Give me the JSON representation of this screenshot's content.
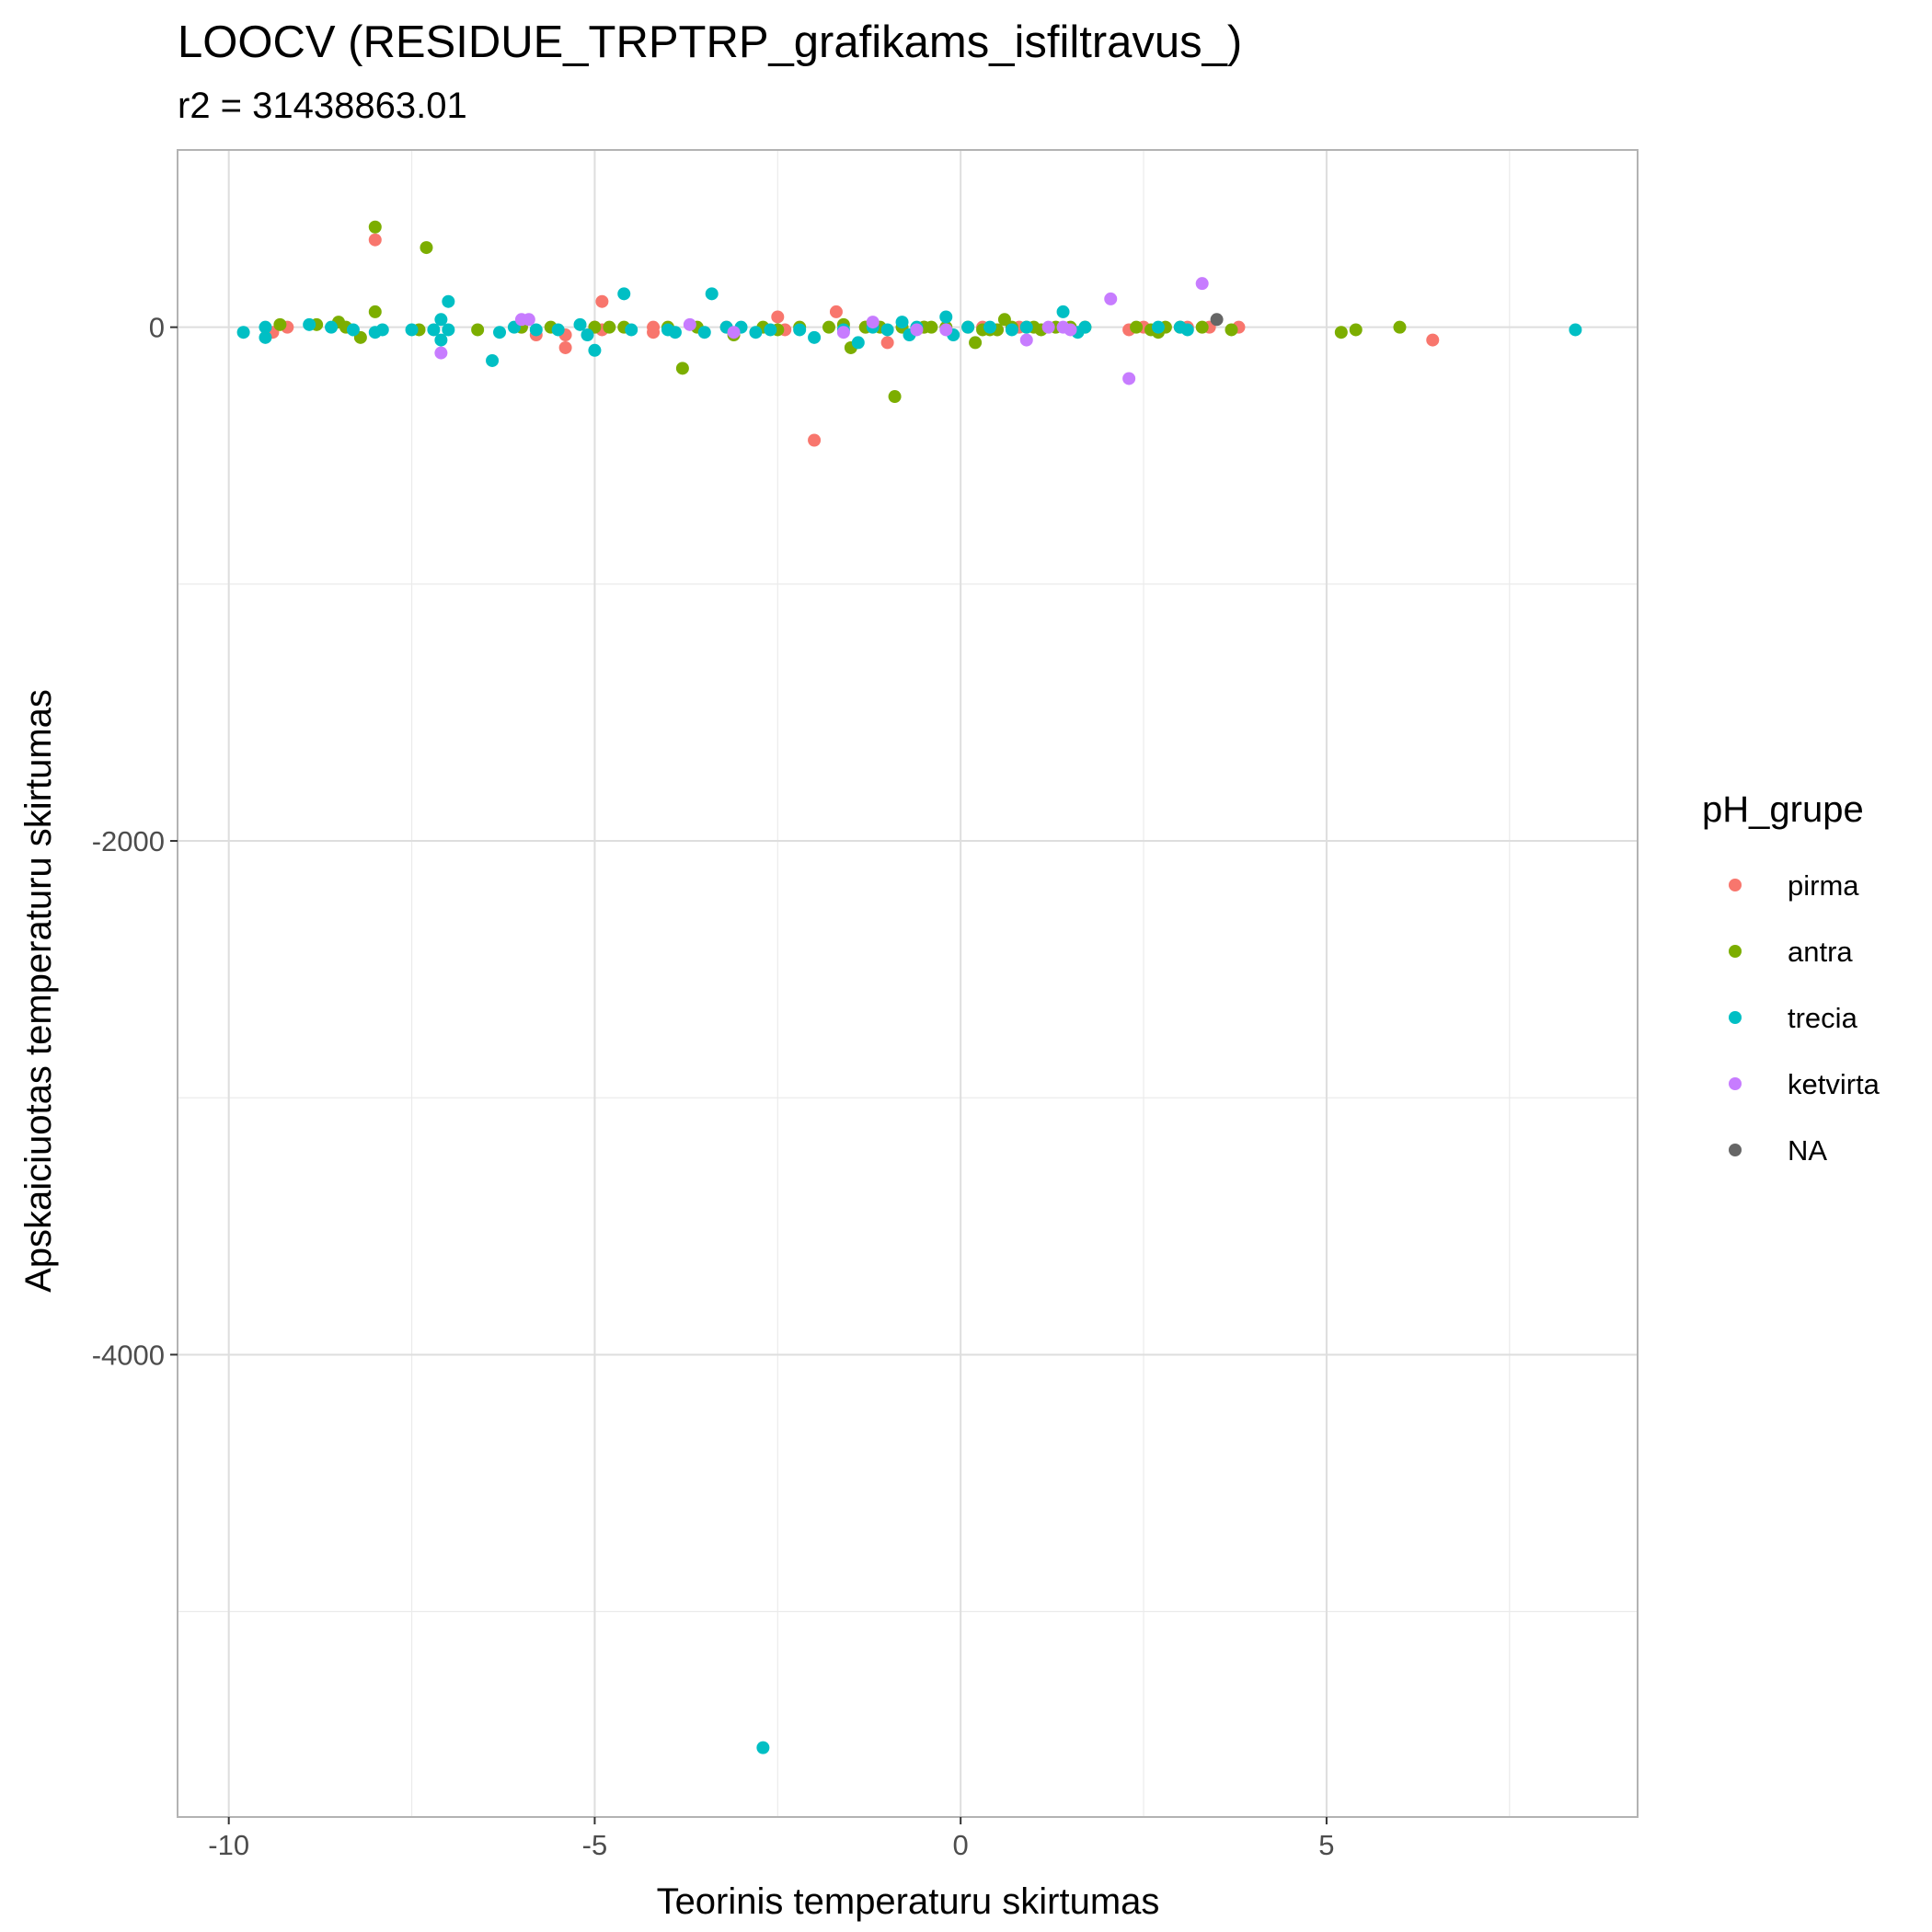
{
  "chart_data": {
    "type": "scatter",
    "title": "LOOCV (RESIDUE_TRPTRP_grafikams_isfiltravus_)",
    "subtitle": "r2 = 31438863.01",
    "xlabel": "Teorinis temperaturu skirtumas",
    "ylabel": "Apskaiciuotas temperaturu skirtumas",
    "xlim": [
      -10.7,
      9.25
    ],
    "ylim": [
      -5800,
      690
    ],
    "x_ticks": [
      -10,
      -5,
      0,
      5
    ],
    "x_tick_labels": [
      "-10",
      "-5",
      "0",
      "5"
    ],
    "y_ticks": [
      -4000,
      -2000,
      0
    ],
    "y_tick_labels": [
      "-4000",
      "-2000",
      "0"
    ],
    "x_minor_ticks": [
      -7.5,
      -2.5,
      2.5,
      7.5
    ],
    "y_minor_ticks": [
      -5000,
      -3000,
      -1000
    ],
    "grid": true,
    "legend": {
      "title": "pH_grupe",
      "position": "right"
    },
    "series": [
      {
        "name": "pirma",
        "color": "#F8766D",
        "points": [
          [
            -9.4,
            -20
          ],
          [
            -9.2,
            0
          ],
          [
            -8.0,
            340
          ],
          [
            -6.0,
            0
          ],
          [
            -5.8,
            -30
          ],
          [
            -5.4,
            -30
          ],
          [
            -5.4,
            -80
          ],
          [
            -5.0,
            0
          ],
          [
            -4.9,
            100
          ],
          [
            -4.9,
            -10
          ],
          [
            -4.2,
            0
          ],
          [
            -4.2,
            -20
          ],
          [
            -3.2,
            0
          ],
          [
            -2.5,
            40
          ],
          [
            -2.4,
            -10
          ],
          [
            -2.0,
            -440
          ],
          [
            -1.7,
            60
          ],
          [
            -1.3,
            0
          ],
          [
            -1.0,
            -60
          ],
          [
            -0.5,
            0
          ],
          [
            0.3,
            0
          ],
          [
            0.5,
            -10
          ],
          [
            0.8,
            0
          ],
          [
            2.3,
            -10
          ],
          [
            2.5,
            0
          ],
          [
            3.1,
            0
          ],
          [
            3.4,
            0
          ],
          [
            3.8,
            0
          ],
          [
            6.45,
            -50
          ]
        ]
      },
      {
        "name": "antra",
        "color": "#7CAE00",
        "points": [
          [
            -9.3,
            10
          ],
          [
            -8.8,
            10
          ],
          [
            -8.5,
            20
          ],
          [
            -8.4,
            0
          ],
          [
            -8.2,
            -40
          ],
          [
            -8.0,
            390
          ],
          [
            -8.0,
            60
          ],
          [
            -7.3,
            310
          ],
          [
            -7.4,
            -10
          ],
          [
            -6.6,
            -10
          ],
          [
            -6.0,
            0
          ],
          [
            -5.6,
            0
          ],
          [
            -5.0,
            0
          ],
          [
            -4.8,
            0
          ],
          [
            -4.6,
            0
          ],
          [
            -4.0,
            0
          ],
          [
            -3.8,
            -160
          ],
          [
            -3.6,
            0
          ],
          [
            -3.1,
            -30
          ],
          [
            -2.7,
            0
          ],
          [
            -2.5,
            -10
          ],
          [
            -2.2,
            0
          ],
          [
            -1.8,
            0
          ],
          [
            -1.6,
            10
          ],
          [
            -1.5,
            -80
          ],
          [
            -1.3,
            0
          ],
          [
            -1.1,
            0
          ],
          [
            -0.9,
            -270
          ],
          [
            -0.8,
            0
          ],
          [
            -0.5,
            0
          ],
          [
            -0.4,
            0
          ],
          [
            -0.2,
            0
          ],
          [
            0.1,
            0
          ],
          [
            0.2,
            -60
          ],
          [
            0.3,
            -10
          ],
          [
            0.4,
            -10
          ],
          [
            0.5,
            -10
          ],
          [
            0.6,
            30
          ],
          [
            0.7,
            0
          ],
          [
            0.9,
            0
          ],
          [
            1.0,
            0
          ],
          [
            1.1,
            -10
          ],
          [
            1.3,
            0
          ],
          [
            1.5,
            0
          ],
          [
            1.7,
            0
          ],
          [
            2.4,
            0
          ],
          [
            2.6,
            -10
          ],
          [
            2.7,
            -20
          ],
          [
            2.8,
            0
          ],
          [
            3.0,
            0
          ],
          [
            3.3,
            0
          ],
          [
            3.7,
            -10
          ],
          [
            5.2,
            -20
          ],
          [
            5.4,
            -10
          ],
          [
            6.0,
            0
          ]
        ]
      },
      {
        "name": "trecia",
        "color": "#00BFC4",
        "points": [
          [
            -9.8,
            -20
          ],
          [
            -9.5,
            -40
          ],
          [
            -9.5,
            0
          ],
          [
            -8.9,
            10
          ],
          [
            -8.6,
            0
          ],
          [
            -8.3,
            -10
          ],
          [
            -8.0,
            -20
          ],
          [
            -7.9,
            -10
          ],
          [
            -7.5,
            -10
          ],
          [
            -7.2,
            -10
          ],
          [
            -7.1,
            30
          ],
          [
            -7.1,
            -50
          ],
          [
            -7.0,
            100
          ],
          [
            -7.0,
            -10
          ],
          [
            -6.4,
            -130
          ],
          [
            -6.3,
            -20
          ],
          [
            -6.1,
            0
          ],
          [
            -5.8,
            -10
          ],
          [
            -5.5,
            -10
          ],
          [
            -5.2,
            10
          ],
          [
            -5.1,
            -30
          ],
          [
            -5.0,
            -90
          ],
          [
            -4.6,
            130
          ],
          [
            -4.5,
            -10
          ],
          [
            -4.0,
            -10
          ],
          [
            -3.9,
            -20
          ],
          [
            -3.5,
            -20
          ],
          [
            -3.4,
            130
          ],
          [
            -3.2,
            0
          ],
          [
            -3.0,
            0
          ],
          [
            -2.8,
            -20
          ],
          [
            -2.6,
            -10
          ],
          [
            -2.2,
            -10
          ],
          [
            -2.0,
            -40
          ],
          [
            -1.6,
            -10
          ],
          [
            -1.4,
            -60
          ],
          [
            -1.2,
            0
          ],
          [
            -1.0,
            -10
          ],
          [
            -0.8,
            20
          ],
          [
            -0.7,
            -30
          ],
          [
            -0.6,
            0
          ],
          [
            -0.2,
            40
          ],
          [
            -0.1,
            -30
          ],
          [
            0.1,
            0
          ],
          [
            0.4,
            0
          ],
          [
            0.7,
            -10
          ],
          [
            0.9,
            0
          ],
          [
            1.4,
            60
          ],
          [
            1.6,
            -20
          ],
          [
            1.7,
            0
          ],
          [
            2.7,
            0
          ],
          [
            3.0,
            0
          ],
          [
            3.1,
            -10
          ],
          [
            8.4,
            -10
          ],
          [
            -2.7,
            -5530
          ]
        ]
      },
      {
        "name": "ketvirta",
        "color": "#C77CFF",
        "points": [
          [
            -7.1,
            -100
          ],
          [
            -6.0,
            30
          ],
          [
            -5.9,
            30
          ],
          [
            -3.7,
            10
          ],
          [
            -3.1,
            -20
          ],
          [
            -1.6,
            -20
          ],
          [
            -1.2,
            20
          ],
          [
            -0.6,
            -10
          ],
          [
            -0.2,
            -10
          ],
          [
            0.9,
            -50
          ],
          [
            1.2,
            0
          ],
          [
            1.4,
            0
          ],
          [
            1.5,
            -10
          ],
          [
            2.05,
            110
          ],
          [
            2.3,
            -200
          ],
          [
            3.3,
            170
          ]
        ]
      },
      {
        "name": "NA",
        "color": "#666666",
        "points": [
          [
            3.5,
            30
          ]
        ]
      }
    ]
  }
}
